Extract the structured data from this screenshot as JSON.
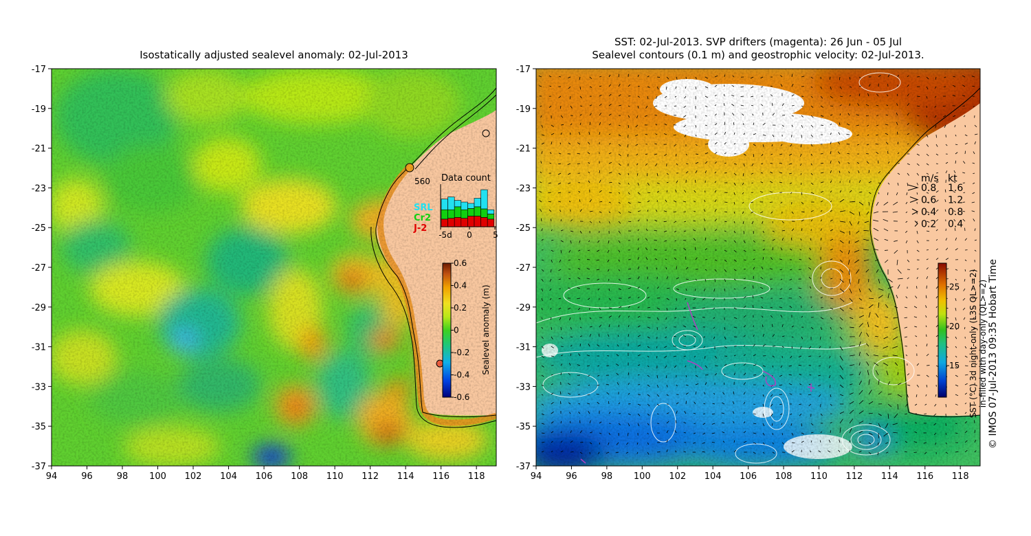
{
  "left_panel": {
    "title": "Isostatically adjusted sealevel anomaly: 02-Jul-2013",
    "x_ticks": [
      "94",
      "96",
      "98",
      "100",
      "102",
      "104",
      "106",
      "108",
      "110",
      "112",
      "114",
      "116",
      "118"
    ],
    "y_ticks": [
      "-17",
      "-19",
      "-21",
      "-23",
      "-25",
      "-27",
      "-29",
      "-31",
      "-33",
      "-35",
      "-37"
    ],
    "colorbar": {
      "label": "Sealevel anomaly (m)",
      "ticks": [
        "0.6",
        "0.4",
        "0.2",
        "0",
        "-0.2",
        "-0.4",
        "-0.6"
      ]
    },
    "data_count": {
      "title": "Data count",
      "max_label": "560",
      "x_ticks": [
        "-5d",
        "0",
        "5"
      ],
      "legend": [
        {
          "name": "SRL",
          "color": "#22e0f0"
        },
        {
          "name": "Cr2",
          "color": "#10d010"
        },
        {
          "name": "J-2",
          "color": "#e00000"
        }
      ],
      "bars": [
        {
          "j2": 0.18,
          "cr2": 0.22,
          "srl": 0.25
        },
        {
          "j2": 0.2,
          "cr2": 0.2,
          "srl": 0.3
        },
        {
          "j2": 0.22,
          "cr2": 0.25,
          "srl": 0.15
        },
        {
          "j2": 0.2,
          "cr2": 0.2,
          "srl": 0.18
        },
        {
          "j2": 0.25,
          "cr2": 0.18,
          "srl": 0.12
        },
        {
          "j2": 0.25,
          "cr2": 0.22,
          "srl": 0.2
        },
        {
          "j2": 0.22,
          "cr2": 0.2,
          "srl": 0.45
        },
        {
          "j2": 0.18,
          "cr2": 0.12,
          "srl": 0.1
        }
      ]
    }
  },
  "right_panel": {
    "title_line1": "SST: 02-Jul-2013. SVP drifters (magenta): 26 Jun - 05 Jul",
    "title_line2": "Sealevel contours (0.1 m) and geostrophic velocity: 02-Jul-2013.",
    "x_ticks": [
      "94",
      "96",
      "98",
      "100",
      "102",
      "104",
      "106",
      "108",
      "110",
      "112",
      "114",
      "116",
      "118"
    ],
    "y_ticks": [
      "-17",
      "-19",
      "-21",
      "-23",
      "-25",
      "-27",
      "-29",
      "-31",
      "-33",
      "-35",
      "-37"
    ],
    "velocity_legend": {
      "header_ms": "m/s",
      "header_kt": "kt",
      "rows": [
        {
          "ms": "0.8",
          "kt": "1.6"
        },
        {
          "ms": "0.6",
          "kt": "1.2"
        },
        {
          "ms": "0.4",
          "kt": "0.8"
        },
        {
          "ms": "0.2",
          "kt": "0.4"
        }
      ]
    },
    "colorbar": {
      "label_line1": "SST (°C) 3d night-only (L3S QL>=2)",
      "label_line2": "in-filled with day-only (QL>=2)",
      "ticks": [
        "25",
        "20",
        "15"
      ]
    },
    "credit": "© IMOS 07-Jul-2013 09:35 Hobart Time"
  },
  "colors": {
    "land": "#f9c8a0",
    "coast": "#000000",
    "contour": "#ffffff",
    "drifter": "#b040c0"
  }
}
